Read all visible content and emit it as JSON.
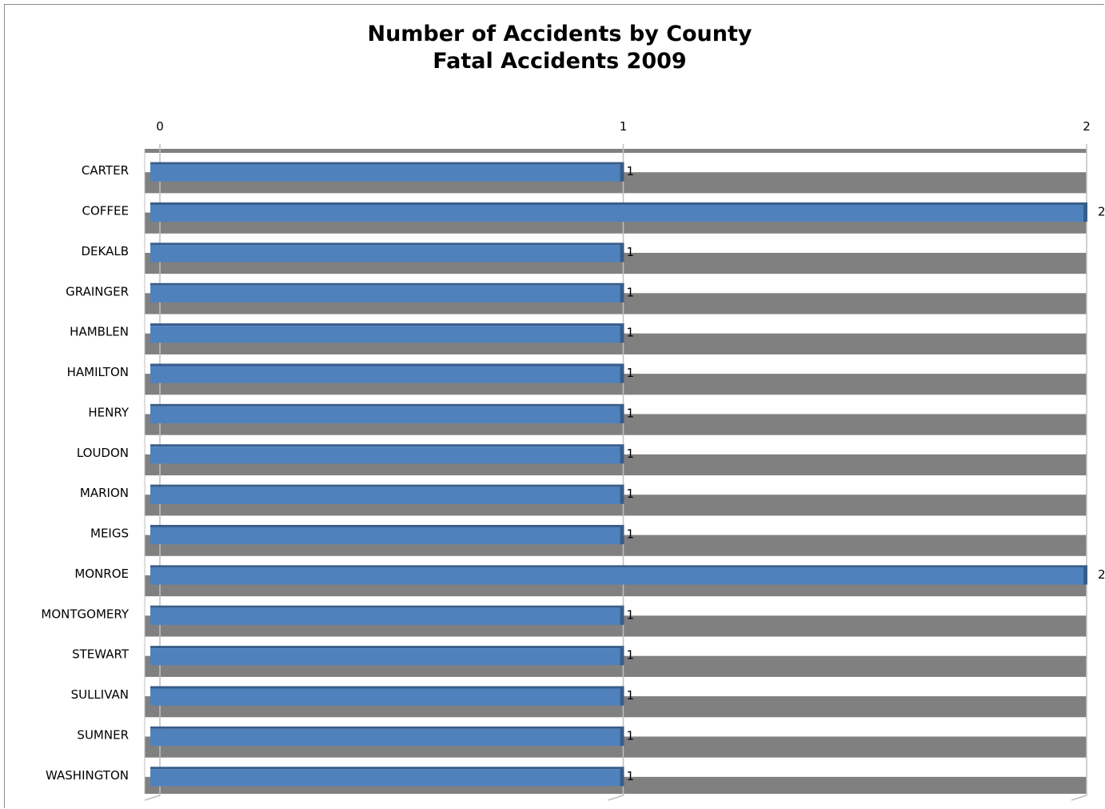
{
  "chart_data": {
    "type": "bar",
    "orientation": "horizontal",
    "title": "Number of Accidents by County",
    "subtitle": "Fatal Accidents 2009",
    "xlabel": "",
    "ylabel": "",
    "xlim": [
      0,
      2
    ],
    "x_ticks": [
      "0",
      "1",
      "2"
    ],
    "categories": [
      "CARTER",
      "COFFEE",
      "DEKALB",
      "GRAINGER",
      "HAMBLEN",
      "HAMILTON",
      "HENRY",
      "LOUDON",
      "MARION",
      "MEIGS",
      "MONROE",
      "MONTGOMERY",
      "STEWART",
      "SULLIVAN",
      "SUMNER",
      "WASHINGTON"
    ],
    "values": [
      1,
      2,
      1,
      1,
      1,
      1,
      1,
      1,
      1,
      1,
      2,
      1,
      1,
      1,
      1,
      1
    ],
    "data_labels": [
      "1",
      "2",
      "1",
      "1",
      "1",
      "1",
      "1",
      "1",
      "1",
      "1",
      "2",
      "1",
      "1",
      "1",
      "1",
      "1"
    ],
    "legend": "none",
    "grid": true,
    "axis_position": "top",
    "colors": {
      "bar": "#4f81bd",
      "bar_dark": "#385d8a",
      "band": "#808080",
      "gridline": "#bfbfbf",
      "background": "#ffffff"
    }
  }
}
